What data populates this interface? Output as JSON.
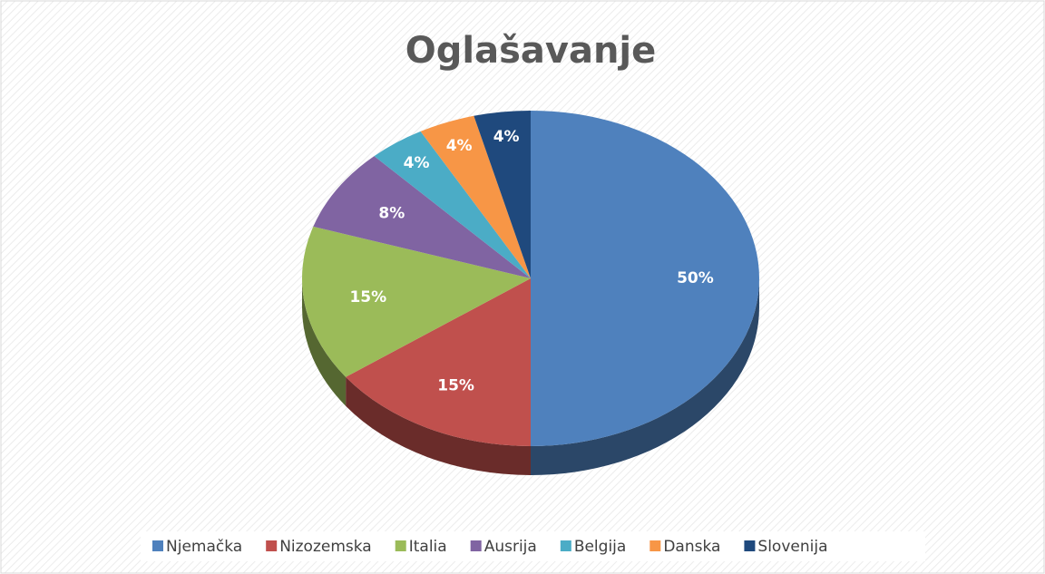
{
  "chart_data": {
    "type": "pie",
    "title": "Oglašavanje",
    "categories": [
      "Njemačka",
      "Nizozemska",
      "Italia",
      "Ausrija",
      "Belgija",
      "Danska",
      "Slovenija"
    ],
    "values": [
      50,
      15,
      15,
      8,
      4,
      4,
      4
    ],
    "value_labels": [
      "50%",
      "15%",
      "15%",
      "8%",
      "4%",
      "4%",
      "4%"
    ],
    "colors": [
      "#4f81bd",
      "#c0504d",
      "#9bbb59",
      "#8064a2",
      "#4bacc6",
      "#f79646",
      "#1f497d"
    ],
    "legend": "bottom"
  }
}
